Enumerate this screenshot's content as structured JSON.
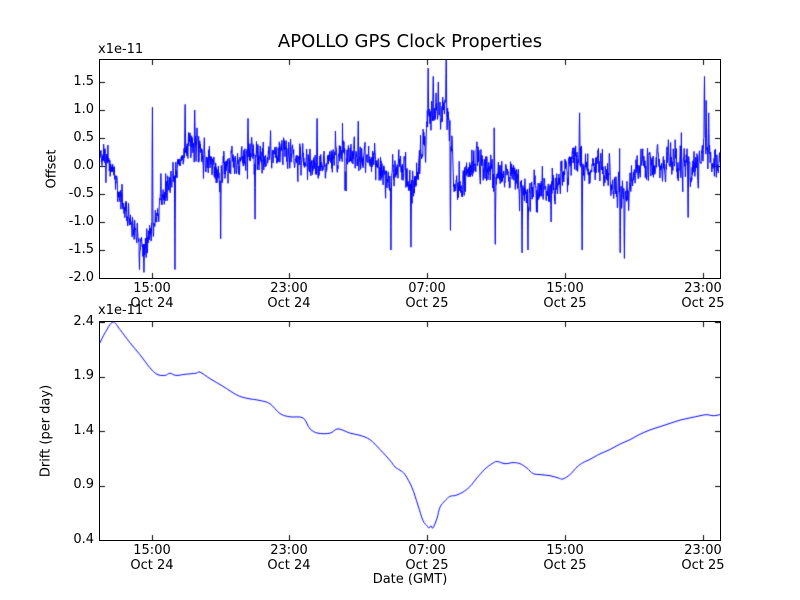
{
  "chart_data": [
    {
      "type": "line",
      "title": "APOLLO GPS Clock Properties",
      "ylabel": "Offset",
      "y_offset_text": "x1e-11",
      "y_unit_scale": "1e-11",
      "ylim": [
        -2.0,
        1.893
      ],
      "yticks": [
        1.5,
        1.0,
        0.5,
        0.0,
        -0.5,
        -1.0,
        -1.5,
        -2.0
      ],
      "ytick_labels": [
        "1.5",
        "1.0",
        "0.5",
        "0.0",
        "-0.5",
        "-1.0",
        "-1.5",
        "-2.0"
      ],
      "x_hours_range": [
        0,
        36
      ],
      "xticks_hours": [
        3,
        11,
        19,
        27,
        35
      ],
      "xtick_labels_line1": [
        "15:00",
        "23:00",
        "07:00",
        "15:00",
        "23:00"
      ],
      "xtick_labels_line2": [
        "Oct 24",
        "Oct 24",
        "Oct 25",
        "Oct 25",
        "Oct 25"
      ],
      "line_color": "#0000ff",
      "grid": false,
      "legend": null,
      "series_model": {
        "description": "dense noisy clock-offset trace: slowly varying mean + AR(1) noise + narrow spikes (units 1e-11)",
        "n_points": 2200,
        "seed": 9,
        "ar_coeff": 0.45,
        "noise_amp": 0.33,
        "stray_prob": 0.012,
        "mean_keypoints": [
          [
            0.0,
            0.15
          ],
          [
            0.6,
            0.0
          ],
          [
            1.2,
            -0.55
          ],
          [
            1.9,
            -1.1
          ],
          [
            2.6,
            -1.45
          ],
          [
            3.0,
            -1.2
          ],
          [
            3.5,
            -0.6
          ],
          [
            4.1,
            -0.3
          ],
          [
            4.6,
            0.1
          ],
          [
            5.2,
            0.45
          ],
          [
            5.8,
            0.35
          ],
          [
            6.4,
            0.0
          ],
          [
            7.0,
            -0.15
          ],
          [
            7.8,
            0.0
          ],
          [
            8.7,
            0.2
          ],
          [
            9.6,
            0.15
          ],
          [
            10.5,
            0.2
          ],
          [
            11.6,
            0.1
          ],
          [
            12.5,
            0.0
          ],
          [
            13.4,
            0.1
          ],
          [
            14.2,
            0.15
          ],
          [
            15.1,
            0.05
          ],
          [
            16.0,
            0.1
          ],
          [
            16.8,
            -0.35
          ],
          [
            17.4,
            0.0
          ],
          [
            18.1,
            -0.4
          ],
          [
            18.6,
            0.1
          ],
          [
            19.0,
            0.7
          ],
          [
            19.4,
            1.1
          ],
          [
            19.7,
            0.85
          ],
          [
            20.1,
            1.15
          ],
          [
            20.4,
            0.2
          ],
          [
            20.8,
            -0.4
          ],
          [
            21.2,
            -0.2
          ],
          [
            21.8,
            0.1
          ],
          [
            22.6,
            -0.1
          ],
          [
            23.2,
            -0.3
          ],
          [
            23.8,
            -0.1
          ],
          [
            24.7,
            -0.5
          ],
          [
            25.5,
            -0.45
          ],
          [
            26.4,
            -0.4
          ],
          [
            27.3,
            0.05
          ],
          [
            27.9,
            0.2
          ],
          [
            28.4,
            -0.1
          ],
          [
            29.0,
            0.0
          ],
          [
            29.7,
            -0.2
          ],
          [
            30.3,
            -0.7
          ],
          [
            30.9,
            -0.2
          ],
          [
            31.6,
            0.1
          ],
          [
            32.5,
            0.0
          ],
          [
            33.4,
            0.1
          ],
          [
            34.3,
            -0.05
          ],
          [
            34.8,
            0.1
          ],
          [
            35.1,
            0.5
          ],
          [
            35.4,
            0.15
          ],
          [
            35.7,
            -0.05
          ],
          [
            36.0,
            0.1
          ]
        ],
        "spikes_down": [
          [
            2.3,
            -1.85
          ],
          [
            2.55,
            -1.9
          ],
          [
            4.35,
            -1.85
          ],
          [
            7.0,
            -1.3
          ],
          [
            9.0,
            -0.95
          ],
          [
            16.9,
            -1.5
          ],
          [
            18.05,
            -1.45
          ],
          [
            20.35,
            -1.15
          ],
          [
            22.95,
            -1.4
          ],
          [
            24.5,
            -1.55
          ],
          [
            24.85,
            -1.5
          ],
          [
            26.2,
            -1.0
          ],
          [
            28.0,
            -1.5
          ],
          [
            30.2,
            -1.55
          ],
          [
            30.45,
            -1.65
          ],
          [
            34.15,
            -0.92
          ]
        ],
        "spikes_up": [
          [
            3.05,
            1.05
          ],
          [
            4.95,
            1.1
          ],
          [
            5.5,
            1.0
          ],
          [
            8.6,
            0.85
          ],
          [
            12.6,
            0.85
          ],
          [
            15.0,
            0.8
          ],
          [
            19.05,
            1.75
          ],
          [
            19.35,
            1.6
          ],
          [
            19.65,
            1.5
          ],
          [
            20.1,
            1.95
          ],
          [
            27.85,
            0.95
          ],
          [
            35.1,
            1.6
          ],
          [
            35.35,
            0.95
          ]
        ]
      }
    },
    {
      "type": "line",
      "ylabel": "Drift (per day)",
      "xlabel": "Date (GMT)",
      "y_offset_text": "x1e-11",
      "y_unit_scale": "1e-11",
      "ylim": [
        0.4,
        2.4
      ],
      "yticks": [
        2.4,
        1.9,
        1.4,
        0.9,
        0.4
      ],
      "ytick_labels": [
        "2.4",
        "1.9",
        "1.4",
        "0.9",
        "0.4"
      ],
      "x_hours_range": [
        0,
        36
      ],
      "xticks_hours": [
        3,
        11,
        19,
        27,
        35
      ],
      "xtick_labels_line1": [
        "15:00",
        "23:00",
        "07:00",
        "15:00",
        "23:00"
      ],
      "xtick_labels_line2": [
        "Oct 24",
        "Oct 24",
        "Oct 25",
        "Oct 25",
        "Oct 25"
      ],
      "line_color": "#0000ff",
      "grid": false,
      "legend": null,
      "points": [
        [
          0.0,
          2.21
        ],
        [
          0.29,
          2.3
        ],
        [
          0.75,
          2.4
        ],
        [
          1.16,
          2.33
        ],
        [
          1.74,
          2.21
        ],
        [
          2.32,
          2.1
        ],
        [
          2.9,
          1.98
        ],
        [
          3.31,
          1.92
        ],
        [
          3.77,
          1.91
        ],
        [
          4.06,
          1.93
        ],
        [
          4.41,
          1.91
        ],
        [
          4.94,
          1.92
        ],
        [
          5.57,
          1.93
        ],
        [
          5.81,
          1.94
        ],
        [
          6.39,
          1.88
        ],
        [
          7.14,
          1.81
        ],
        [
          7.95,
          1.73
        ],
        [
          8.53,
          1.7
        ],
        [
          9.29,
          1.68
        ],
        [
          9.87,
          1.65
        ],
        [
          10.45,
          1.56
        ],
        [
          11.03,
          1.53
        ],
        [
          11.79,
          1.52
        ],
        [
          12.19,
          1.42
        ],
        [
          12.66,
          1.38
        ],
        [
          13.35,
          1.38
        ],
        [
          13.82,
          1.42
        ],
        [
          14.52,
          1.38
        ],
        [
          15.1,
          1.36
        ],
        [
          15.68,
          1.32
        ],
        [
          16.26,
          1.23
        ],
        [
          16.84,
          1.13
        ],
        [
          17.13,
          1.07
        ],
        [
          17.42,
          1.04
        ],
        [
          17.71,
          1.0
        ],
        [
          18.12,
          0.88
        ],
        [
          18.46,
          0.72
        ],
        [
          18.75,
          0.58
        ],
        [
          18.99,
          0.53
        ],
        [
          19.1,
          0.51
        ],
        [
          19.22,
          0.53
        ],
        [
          19.33,
          0.51
        ],
        [
          19.57,
          0.6
        ],
        [
          19.74,
          0.7
        ],
        [
          20.03,
          0.76
        ],
        [
          20.32,
          0.8
        ],
        [
          20.67,
          0.81
        ],
        [
          21.08,
          0.84
        ],
        [
          21.48,
          0.89
        ],
        [
          21.89,
          0.97
        ],
        [
          22.35,
          1.05
        ],
        [
          22.76,
          1.1
        ],
        [
          23.05,
          1.12
        ],
        [
          23.52,
          1.1
        ],
        [
          23.98,
          1.11
        ],
        [
          24.39,
          1.1
        ],
        [
          24.79,
          1.06
        ],
        [
          25.14,
          1.01
        ],
        [
          25.55,
          1.0
        ],
        [
          26.13,
          0.99
        ],
        [
          26.59,
          0.97
        ],
        [
          26.88,
          0.96
        ],
        [
          27.29,
          1.0
        ],
        [
          27.7,
          1.07
        ],
        [
          28.05,
          1.11
        ],
        [
          28.45,
          1.14
        ],
        [
          29.03,
          1.19
        ],
        [
          29.61,
          1.23
        ],
        [
          30.19,
          1.28
        ],
        [
          30.77,
          1.32
        ],
        [
          31.35,
          1.37
        ],
        [
          31.94,
          1.41
        ],
        [
          32.52,
          1.44
        ],
        [
          33.1,
          1.47
        ],
        [
          33.68,
          1.5
        ],
        [
          34.26,
          1.52
        ],
        [
          34.84,
          1.54
        ],
        [
          35.25,
          1.55
        ],
        [
          35.6,
          1.54
        ],
        [
          36.0,
          1.55
        ]
      ]
    }
  ]
}
